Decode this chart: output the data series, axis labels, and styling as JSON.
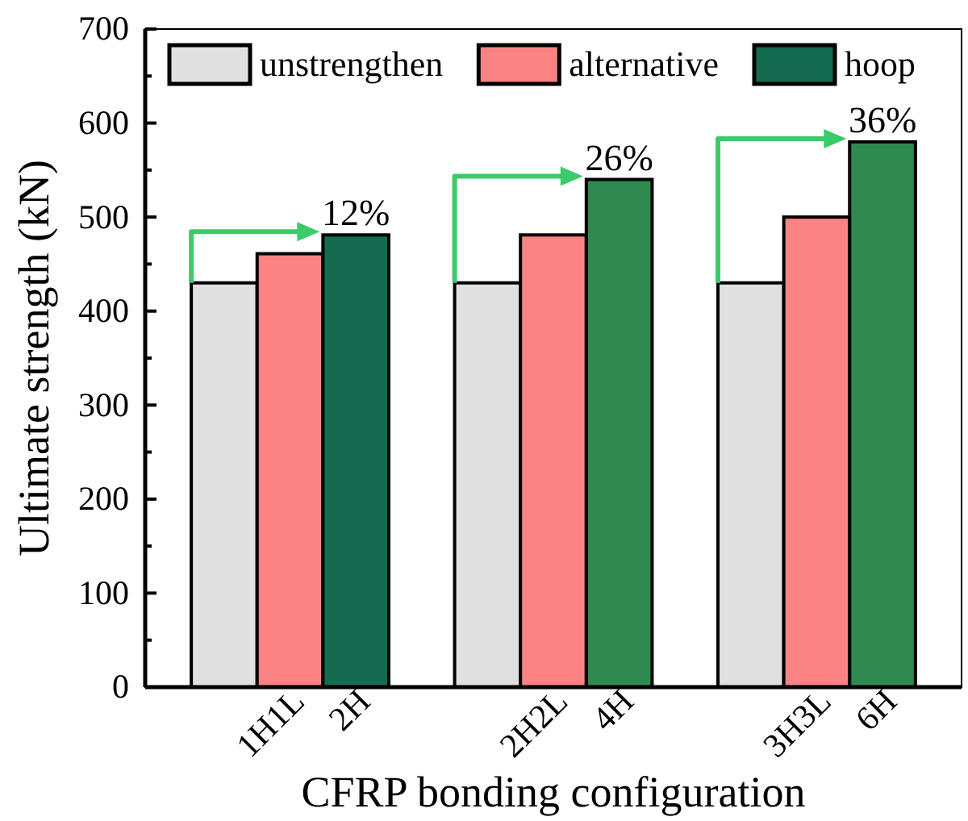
{
  "chart_data": {
    "type": "bar",
    "xlabel": "CFRP bonding configuration",
    "ylabel": "Ultimate strength (kN)",
    "categories": [
      null,
      "1H1L",
      "2H",
      null,
      null,
      "2H2L",
      "4H",
      null,
      null,
      "3H3L",
      "6H"
    ],
    "series": [
      {
        "name": "unstrengthen",
        "color": "#e0e0e0",
        "values": [
          430,
          null,
          null,
          null,
          430,
          null,
          null,
          null,
          430,
          null,
          null
        ]
      },
      {
        "name": "alternative",
        "color": "#fb8383",
        "values": [
          null,
          461,
          null,
          null,
          null,
          481,
          null,
          null,
          null,
          500,
          null
        ]
      },
      {
        "name": "hoop",
        "color": "#2e8a4e",
        "colors": [
          null,
          null,
          "#146b50",
          null,
          null,
          null,
          "#2e8a4e",
          null,
          null,
          null,
          "#2e8a4e"
        ],
        "values": [
          null,
          null,
          481,
          null,
          null,
          null,
          540,
          null,
          null,
          null,
          580
        ]
      }
    ],
    "ylim": [
      0,
      700
    ],
    "yticks": [
      0,
      {
        "value": 50,
        "label": null
      },
      100,
      {
        "value": 150,
        "label": null
      },
      200,
      {
        "value": 250,
        "label": null
      },
      300,
      {
        "value": 350,
        "label": null
      },
      400,
      {
        "value": 450,
        "label": null
      },
      500,
      {
        "value": 550,
        "label": null
      },
      600,
      {
        "value": 650,
        "label": null
      },
      700
    ],
    "annotations": [
      {
        "text": "12%",
        "x": "2H",
        "y": 481
      },
      {
        "text": "26%",
        "x": "4H",
        "y": 540
      },
      {
        "text": "36%",
        "x": "6H",
        "y": 580
      }
    ],
    "legend": "top",
    "grid": false
  }
}
